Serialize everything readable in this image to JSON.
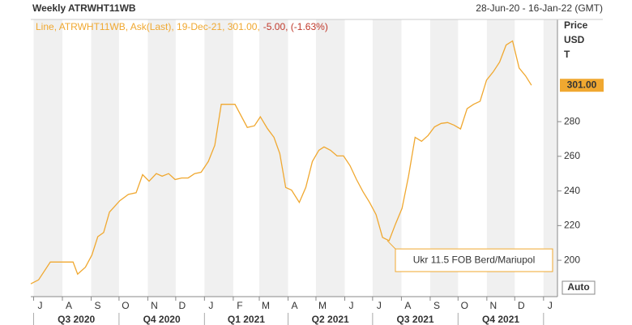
{
  "chart_data": {
    "type": "line",
    "title": "Weekly ATRWHT11WB",
    "date_range": "28-Jun-20 - 16-Jan-22 (GMT)",
    "legend": {
      "text": "Line, ATRWHT11WB, Ask(Last), 19-Dec-21, 301.00,",
      "change": "-5.00, (-1.63%)"
    },
    "ylabel_lines": [
      "Price",
      "USD",
      "T"
    ],
    "annotation": "Ukr 11.5 FOB Berd/Mariupol",
    "button": "Auto",
    "xlim": [
      0,
      81
    ],
    "xticks": [
      {
        "value": 0.43,
        "label": "J"
      },
      {
        "value": 4.86,
        "label": "A"
      },
      {
        "value": 9.29,
        "label": "S"
      },
      {
        "value": 13.57,
        "label": "O"
      },
      {
        "value": 18,
        "label": "N"
      },
      {
        "value": 22.29,
        "label": "D"
      },
      {
        "value": 26.71,
        "label": "J"
      },
      {
        "value": 31.14,
        "label": "F"
      },
      {
        "value": 35.14,
        "label": "M"
      },
      {
        "value": 39.57,
        "label": "A"
      },
      {
        "value": 43.86,
        "label": "M"
      },
      {
        "value": 48.29,
        "label": "J"
      },
      {
        "value": 52.57,
        "label": "J"
      },
      {
        "value": 57,
        "label": "A"
      },
      {
        "value": 61.43,
        "label": "S"
      },
      {
        "value": 65.71,
        "label": "O"
      },
      {
        "value": 70.14,
        "label": "N"
      },
      {
        "value": 74.43,
        "label": "D"
      },
      {
        "value": 78.86,
        "label": "J"
      }
    ],
    "quarters": [
      "Q3 2020",
      "Q4 2020",
      "Q1 2021",
      "Q2 2021",
      "Q3 2021",
      "Q4 2021"
    ],
    "ylim": [
      179,
      339
    ],
    "yticks": [
      200,
      220,
      240,
      260,
      280
    ],
    "series": [
      {
        "name": "ATRWHT11WB",
        "color": "#f0a830",
        "x": [
          0,
          1.2,
          3,
          6.5,
          7.2,
          8.4,
          9.4,
          10.3,
          11.2,
          12.1,
          13.7,
          15,
          16.2,
          17.2,
          18.2,
          19.3,
          20.2,
          21.2,
          22.2,
          23.2,
          24.2,
          25.2,
          26.2,
          27.3,
          28.3,
          29.3,
          31.4,
          33.3,
          34.4,
          35.3,
          36.4,
          37.4,
          38.3,
          39.2,
          40.1,
          41.3,
          42.3,
          43.3,
          44.3,
          45.1,
          46.1,
          47.1,
          48.1,
          49.1,
          50.1,
          51.1,
          52.1,
          53.1,
          54.1,
          55.1,
          56.1,
          57.1,
          58.1,
          59.1,
          60.1,
          61.1,
          62.1,
          63.1,
          64.1,
          65.1,
          66.1,
          67.1,
          68.1,
          69.1,
          70.1,
          71.1,
          72.1,
          73.1,
          74.1,
          75.1,
          76.1,
          77
        ],
        "values": [
          186.4,
          188.7,
          199,
          199,
          192,
          196,
          203,
          213.6,
          216,
          227.8,
          234.4,
          238,
          239,
          249.4,
          245.6,
          250,
          248.5,
          250,
          246.6,
          247.5,
          247.5,
          250,
          250.8,
          257,
          266.4,
          290,
          290,
          276.7,
          277.6,
          282.8,
          276,
          271,
          261.6,
          242,
          240.5,
          233.4,
          242,
          257,
          263.5,
          265.4,
          263.5,
          260.2,
          260.2,
          254.6,
          246.6,
          239.5,
          233.4,
          226.4,
          213.2,
          211.3,
          221,
          230,
          248.5,
          271,
          268.7,
          272,
          277,
          279,
          279.5,
          278,
          275.8,
          287.5,
          290,
          291.8,
          304,
          308.7,
          314.4,
          324.2,
          326.6,
          311,
          306.4,
          301
        ],
        "last_value": 301,
        "last_value_label": "301.00"
      }
    ]
  }
}
